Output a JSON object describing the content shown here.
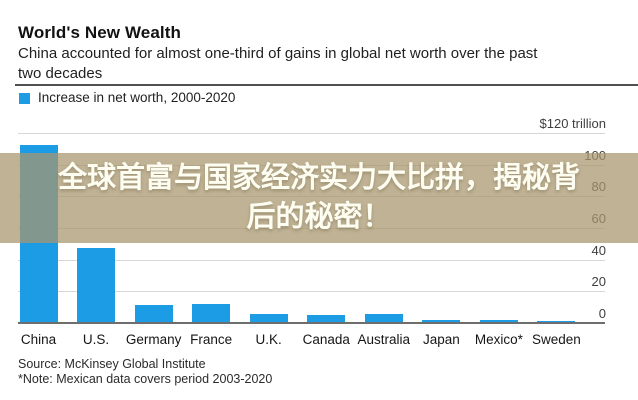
{
  "title": "World's New Wealth",
  "subtitle_lines": [
    "China accounted for almost one-third of gains in global net worth over the past",
    "two decades"
  ],
  "legend": {
    "label": "Increase in net worth, 2000-2020",
    "color": "#1b9ce5"
  },
  "overlay": {
    "lines": [
      "全球首富与国家经济实力大比拼，揭秘背",
      "后的秘密！"
    ],
    "bg_color": "rgba(168,149,108,0.73)",
    "text_color": "#fefdf2"
  },
  "source": "Source: McKinsey Global Institute",
  "note": "*Note: Mexican data covers period 2003-2020",
  "chart_data": {
    "type": "bar",
    "title": "World's New Wealth",
    "subtitle": "China accounted for almost one-third of gains in global net worth over the past two decades",
    "series_label": "Increase in net worth, 2000-2020",
    "unit": "USD trillion",
    "categories": [
      "China",
      "U.S.",
      "Germany",
      "France",
      "U.K.",
      "Canada",
      "Australia",
      "Japan",
      "Mexico*",
      "Sweden"
    ],
    "values": [
      113,
      48,
      12,
      12.5,
      6.5,
      6,
      6.5,
      2.5,
      2.5,
      2
    ],
    "bar_color": "#1b9ce5",
    "ylim": [
      0,
      120
    ],
    "yticks": [
      {
        "value": 120,
        "label": "$120 trillion"
      },
      {
        "value": 100,
        "label": "100"
      },
      {
        "value": 80,
        "label": "80"
      },
      {
        "value": 60,
        "label": "60"
      },
      {
        "value": 40,
        "label": "40"
      },
      {
        "value": 20,
        "label": "20"
      },
      {
        "value": 0,
        "label": "0"
      }
    ],
    "grid": "horizontal-light",
    "axis_labels_side": "right",
    "legend_position": "top-left"
  }
}
